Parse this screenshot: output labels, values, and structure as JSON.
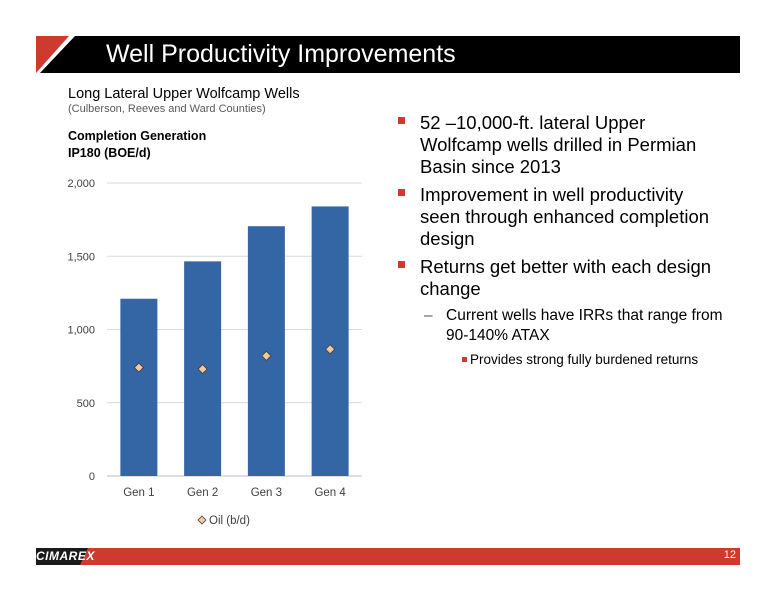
{
  "slide": {
    "title": "Well Productivity Improvements",
    "page_number": "12",
    "logo": "CIMAREX",
    "colors": {
      "accent_red": "#cf3a2e",
      "title_bar": "#000000",
      "bar_fill": "#3465a4"
    }
  },
  "chart_data": {
    "type": "bar",
    "title": "Long Lateral Upper Wolfcamp Wells",
    "subtitle": "(Culberson, Reeves and Ward Counties)",
    "series_title_line1": "Completion Generation",
    "series_title_line2": "IP180 (BOE/d)",
    "categories": [
      "Gen 1",
      "Gen 2",
      "Gen 3",
      "Gen 4"
    ],
    "series": [
      {
        "values": [
          1210,
          1465,
          1705,
          1840
        ],
        "kind": "bar"
      },
      {
        "name": "Oil (b/d)",
        "values": [
          740,
          730,
          820,
          865
        ],
        "kind": "marker"
      }
    ],
    "ylim": [
      0,
      2000
    ],
    "yticks": [
      0,
      500,
      1000,
      1500,
      2000
    ],
    "ytick_labels": [
      "0",
      "500",
      "1,000",
      "1,500",
      "2,000"
    ],
    "grid": true,
    "legend_position": "bottom"
  },
  "bullets": [
    {
      "level": 1,
      "text": "52 –10,000-ft. lateral Upper Wolfcamp wells drilled in Permian Basin since 2013"
    },
    {
      "level": 1,
      "text": "Improvement in well productivity seen through enhanced completion design"
    },
    {
      "level": 1,
      "text": "Returns get better with each design change"
    },
    {
      "level": 2,
      "marker": "–",
      "text": "Current wells have IRRs that range from 90-140% ATAX"
    },
    {
      "level": 3,
      "text": "Provides strong fully burdened returns"
    }
  ]
}
